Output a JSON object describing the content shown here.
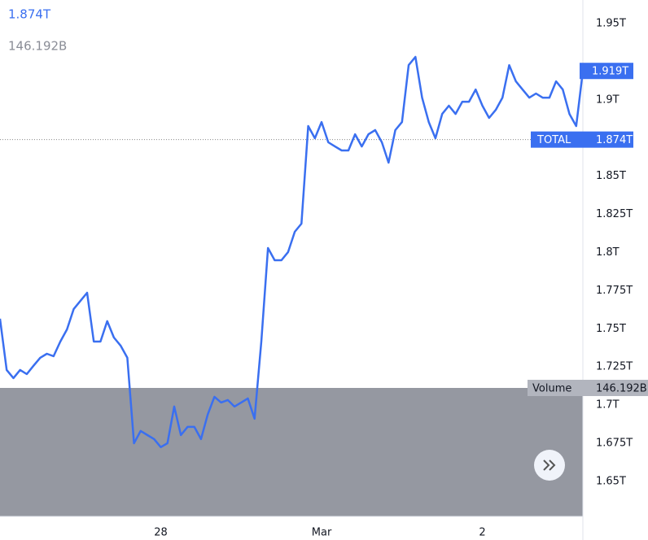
{
  "chart_data": {
    "type": "line",
    "legend_value": "1.874T",
    "legend_volume": "146.192B",
    "color": "#3a6ff0",
    "x": [
      0,
      1,
      2,
      3,
      4,
      5,
      6,
      7,
      8,
      9,
      10,
      11,
      12,
      13,
      14,
      15,
      16,
      17,
      18,
      19,
      20,
      21,
      22,
      23,
      24,
      25,
      26,
      27,
      28,
      29,
      30,
      31,
      32,
      33,
      34,
      35,
      36,
      37,
      38,
      39,
      40,
      41,
      42,
      43,
      44,
      45,
      46,
      47,
      48,
      49,
      50,
      51,
      52,
      53,
      54,
      55,
      56,
      57,
      58,
      59,
      60,
      61,
      62,
      63,
      64,
      65,
      66,
      67,
      68,
      69,
      70,
      71,
      72,
      73,
      74,
      75,
      76,
      77,
      78,
      79,
      80,
      81,
      82,
      83,
      84,
      85,
      86,
      87
    ],
    "values": [
      1.7566,
      1.723,
      1.7177,
      1.723,
      1.7203,
      1.7257,
      1.731,
      1.7336,
      1.732,
      1.7416,
      1.7496,
      1.7629,
      1.7683,
      1.7736,
      1.7416,
      1.7416,
      1.755,
      1.7443,
      1.739,
      1.731,
      1.675,
      1.683,
      1.6803,
      1.6777,
      1.6724,
      1.675,
      1.699,
      1.6803,
      1.6857,
      1.6857,
      1.6777,
      1.6937,
      1.7054,
      1.7017,
      1.7033,
      1.699,
      1.7017,
      1.7043,
      1.691,
      1.7416,
      1.8029,
      1.7949,
      1.7949,
      1.8003,
      1.8136,
      1.8189,
      1.8829,
      1.8749,
      1.8855,
      1.8722,
      1.8695,
      1.8669,
      1.8669,
      1.8775,
      1.8695,
      1.8775,
      1.8802,
      1.8722,
      1.8589,
      1.8802,
      1.8855,
      1.9228,
      1.9282,
      1.9015,
      1.8855,
      1.8749,
      1.8908,
      1.8962,
      1.8908,
      1.8988,
      1.8988,
      1.9068,
      1.8962,
      1.8882,
      1.8935,
      1.9015,
      1.9228,
      1.9122,
      1.9068,
      1.9015,
      1.9042,
      1.9015,
      1.9015,
      1.9122,
      1.9068,
      1.8908,
      1.8829,
      1.919
    ],
    "last_label": "1.919T",
    "total": {
      "label": "TOTAL",
      "value": 1.874,
      "value_label": "1.874T"
    },
    "volume": {
      "label": "Volume",
      "value_label": "146.192B"
    },
    "xlim": [
      0,
      87
    ],
    "xticks": [
      {
        "value": 24,
        "label": "28"
      },
      {
        "value": 48,
        "label": "Mar"
      },
      {
        "value": 72,
        "label": "2"
      }
    ],
    "ylim": [
      1.627,
      1.9655
    ],
    "yticks": [
      {
        "value": 1.65,
        "label": "1.65T"
      },
      {
        "value": 1.675,
        "label": "1.675T"
      },
      {
        "value": 1.7,
        "label": "1.7T"
      },
      {
        "value": 1.725,
        "label": "1.725T"
      },
      {
        "value": 1.75,
        "label": "1.75T"
      },
      {
        "value": 1.775,
        "label": "1.775T"
      },
      {
        "value": 1.8,
        "label": "1.8T"
      },
      {
        "value": 1.825,
        "label": "1.825T"
      },
      {
        "value": 1.85,
        "label": "1.85T"
      },
      {
        "value": 1.9,
        "label": "1.9T"
      },
      {
        "value": 1.95,
        "label": "1.95T"
      }
    ]
  }
}
